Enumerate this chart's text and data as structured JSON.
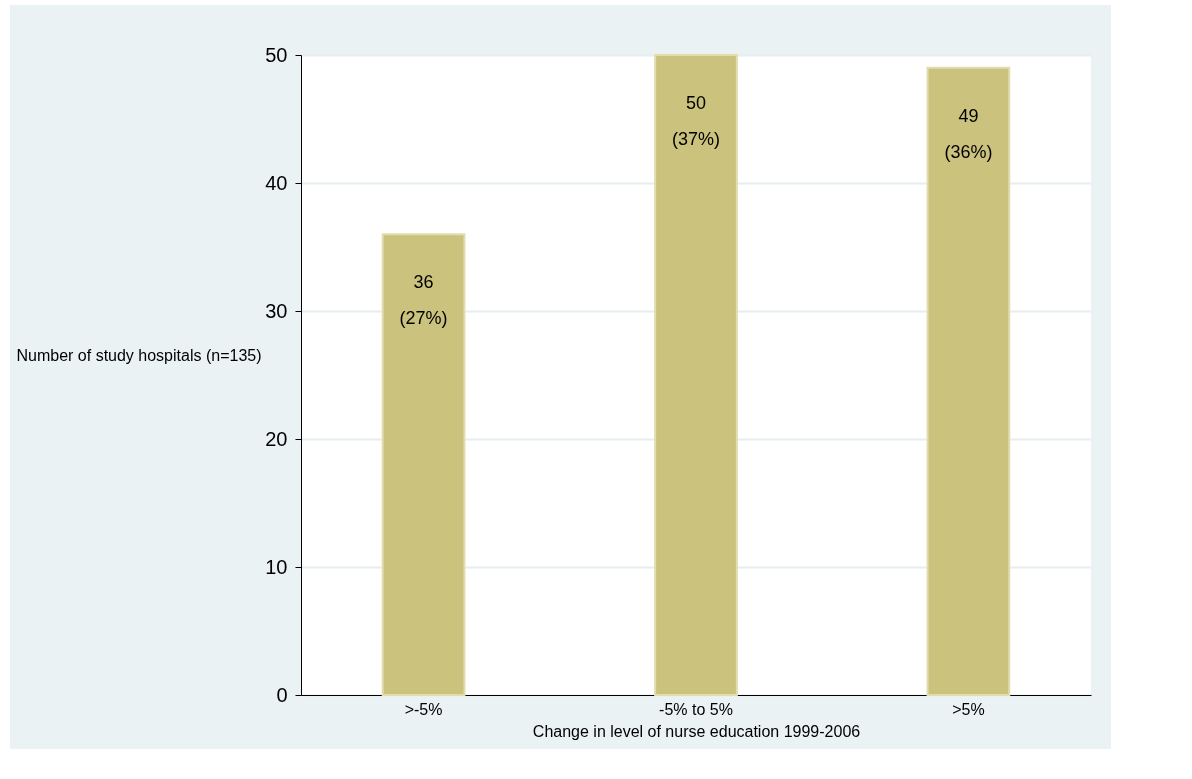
{
  "chart_data": {
    "type": "bar",
    "xlabel": "Change in level of nurse education 1999-2006",
    "ylabel": "Number of study hospitals (n=135)",
    "categories": [
      ">-5%",
      "-5% to 5%",
      ">5%"
    ],
    "values": [
      36,
      50,
      49
    ],
    "value_labels": [
      "36 (27%)",
      "50 (37%)",
      "49 (36%)"
    ],
    "color": "#cbc27e",
    "ylim": [
      0,
      50
    ],
    "yticks": [
      0,
      10,
      20,
      30,
      40,
      50
    ],
    "grid": "y"
  }
}
